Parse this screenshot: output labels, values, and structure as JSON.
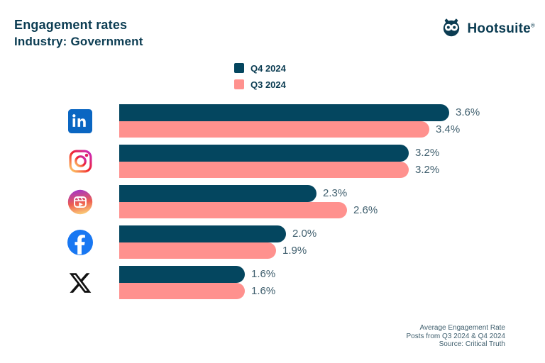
{
  "header": {
    "title": "Engagement rates",
    "subtitle": "Industry: Government",
    "brand": "Hootsuite",
    "brand_mark": "®"
  },
  "chart_data": {
    "type": "bar",
    "orientation": "horizontal",
    "title": "Engagement rates — Industry: Government",
    "categories": [
      "LinkedIn",
      "Instagram",
      "Instagram Reels",
      "Facebook",
      "X (Twitter)"
    ],
    "icons": [
      "linkedin-icon",
      "instagram-icon",
      "instagram-reels-icon",
      "facebook-icon",
      "x-icon"
    ],
    "series": [
      {
        "name": "Q4 2024",
        "color": "#04465F",
        "values": [
          3.6,
          3.2,
          2.3,
          2.0,
          1.6
        ]
      },
      {
        "name": "Q3 2024",
        "color": "#FF918E",
        "values": [
          3.4,
          3.2,
          2.6,
          1.9,
          1.6
        ]
      }
    ],
    "value_suffix": "%",
    "xlim": [
      0,
      3.6
    ],
    "grid": false,
    "legend_position": "top-center"
  },
  "footer": {
    "line1": "Average Engagement Rate",
    "line2": "Posts from Q3 2024 & Q4 2024",
    "line3": "Source: Critical Truth"
  },
  "colors": {
    "q4": "#04465F",
    "q3": "#FF918E",
    "title_text": "#0B3C52",
    "value_label_text": "#41606F",
    "background": "#FFFFFF"
  }
}
